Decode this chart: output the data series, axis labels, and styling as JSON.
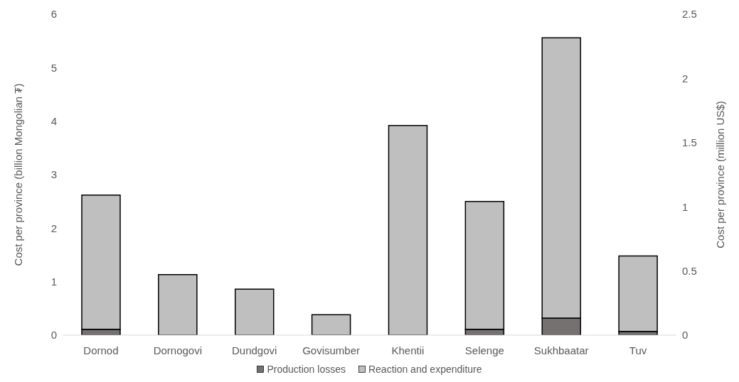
{
  "chart_data": {
    "type": "bar",
    "stacked": true,
    "categories": [
      "Dornod",
      "Dornogovi",
      "Dundgovi",
      "Govisumber",
      "Khentii",
      "Selenge",
      "Sukhbaatar",
      "Tuv"
    ],
    "series": [
      {
        "name": "Production losses",
        "color": "#767171",
        "values": [
          0.11,
          null,
          null,
          0,
          null,
          0.11,
          0.32,
          0.07
        ]
      },
      {
        "name": "Reaction and expenditure",
        "color": "#bfbfbf",
        "values": [
          2.51,
          1.13,
          0.86,
          0.38,
          3.92,
          2.39,
          5.24,
          1.41
        ]
      }
    ],
    "ylabel": "Cost per province (billion Mongolian ₮)",
    "y2label": "Cost per province (million US$)",
    "ylim": [
      0,
      6
    ],
    "yticks": [
      0,
      1,
      2,
      3,
      4,
      5,
      6
    ],
    "y2lim": [
      0,
      2.5
    ],
    "y2ticks": [
      0,
      0.5,
      1,
      1.5,
      2,
      2.5
    ],
    "legend": "bottom",
    "grid": false
  }
}
